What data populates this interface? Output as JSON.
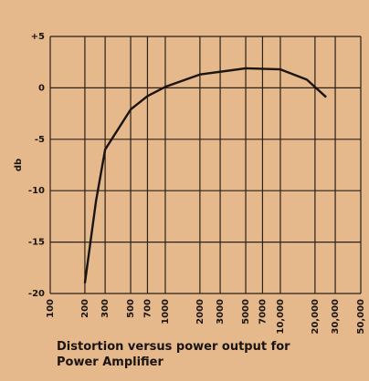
{
  "chart_data": {
    "type": "line",
    "title": "Distortion versus power output for Power Amplifier",
    "y_label": "db",
    "x": [
      200,
      250,
      300,
      500,
      700,
      1000,
      2000,
      5000,
      10000,
      17000,
      25000
    ],
    "series": [
      {
        "color": "#1a1410",
        "values": [
          -19,
          -11,
          -6,
          -2.1,
          -0.8,
          0.1,
          1.3,
          1.9,
          1.8,
          0.8,
          -0.9
        ]
      }
    ],
    "xscale": "log",
    "xlim": [
      100,
      50000
    ],
    "xticks": [
      100,
      200,
      300,
      500,
      700,
      1000,
      2000,
      3000,
      5000,
      7000,
      {
        "value": 10000,
        "label": "10,000"
      },
      {
        "value": 20000,
        "label": "20,000"
      },
      {
        "value": 30000,
        "label": "30,000"
      },
      {
        "value": 50000,
        "label": "50,000"
      }
    ],
    "ylim": [
      -20,
      5
    ],
    "yticks": [
      {
        "value": 5,
        "label": "+5"
      },
      0,
      -5,
      -10,
      -15,
      -20
    ],
    "grid": true
  }
}
